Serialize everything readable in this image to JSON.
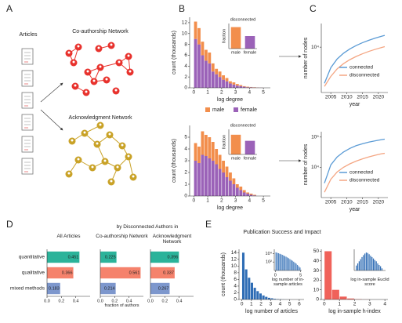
{
  "panel_labels": [
    "A",
    "B",
    "C",
    "D",
    "E"
  ],
  "diagram": {
    "articles": "Articles",
    "coauthorship": "Co-authorship Network",
    "acknowledgment": "Acknowledgment Network"
  },
  "panel_d_header": "by Disconnected Authors in",
  "panel_e_title": "Publication Success and Impact",
  "chart_data": [
    {
      "type": "histogram",
      "ylabel": "count (thousands)",
      "xlabel": "log degree",
      "bins": [
        0,
        0.25,
        0.5,
        0.75,
        1,
        1.25,
        1.5,
        1.75,
        2,
        2.25,
        2.5,
        2.75,
        3,
        3.25,
        3.5,
        3.75,
        4,
        4.25,
        4.5,
        4.75,
        5
      ],
      "series": [
        {
          "name": "male",
          "color": "#f28e4c",
          "values": [
            3.2,
            3,
            2.5,
            2,
            2,
            1.5,
            1,
            1,
            0.8,
            0.6,
            0.4,
            0.4,
            0.3,
            0.2,
            0.1,
            0.1,
            0.05,
            0.05,
            0.02,
            0.01
          ]
        },
        {
          "name": "female",
          "color": "#9b62b8",
          "values": [
            9,
            8,
            6,
            5,
            4.5,
            3,
            2.5,
            2,
            1.5,
            1.2,
            0.8,
            0.6,
            0.4,
            0.3,
            0.2,
            0.1,
            0.1,
            0.05,
            0.03,
            0.02
          ]
        }
      ],
      "xlim": [
        -0.3,
        5.5
      ],
      "xticks": [
        0,
        1,
        2,
        3,
        4,
        5
      ],
      "ylim": [
        0,
        13
      ],
      "yticks": [
        0,
        2,
        4,
        6,
        8,
        10,
        12
      ],
      "legend": "below"
    },
    {
      "type": "bar",
      "title": "disconnected",
      "ylabel": "fraction",
      "categories": [
        "male",
        "female"
      ],
      "values": [
        0.6,
        0.35
      ],
      "colors": [
        "#f28e4c",
        "#9b62b8"
      ],
      "ylim": [
        0,
        0.7
      ]
    },
    {
      "type": "histogram",
      "ylabel": "count (thousands)",
      "xlabel": "log degree",
      "bins": [
        0,
        0.25,
        0.5,
        0.75,
        1,
        1.25,
        1.5,
        1.75,
        2,
        2.25,
        2.5,
        2.75,
        3,
        3.25,
        3.5,
        3.75,
        4,
        4.25,
        4.5
      ],
      "series": [
        {
          "color": "#f28e4c",
          "values": [
            1.5,
            1.4,
            2,
            1.8,
            1.8,
            1.6,
            1.3,
            1.2,
            1,
            0.9,
            0.7,
            0.5,
            0.3,
            0.3,
            0.2,
            0.1,
            0.1,
            0.05
          ]
        },
        {
          "color": "#9b62b8",
          "values": [
            3,
            2.8,
            3.5,
            3.4,
            3.2,
            3,
            2.7,
            2.3,
            2,
            1.6,
            1.3,
            1,
            0.7,
            0.5,
            0.3,
            0.2,
            0.1,
            0.05
          ]
        }
      ],
      "xlim": [
        -0.3,
        5.5
      ],
      "xticks": [
        0,
        1,
        2,
        3,
        4,
        5
      ],
      "ylim": [
        0,
        6
      ],
      "yticks": [
        0,
        1,
        2,
        3,
        4,
        5
      ]
    },
    {
      "type": "bar",
      "title": "disconnected",
      "ylabel": "fraction",
      "categories": [
        "male",
        "female"
      ],
      "values": [
        0.55,
        0.38
      ],
      "colors": [
        "#f28e4c",
        "#9b62b8"
      ],
      "ylim": [
        0,
        0.7
      ]
    },
    {
      "type": "line",
      "xlabel": "year",
      "ylabel": "number of nodes",
      "x": [
        2003,
        2005,
        2007,
        2009,
        2011,
        2013,
        2015,
        2017,
        2019,
        2021,
        2022
      ],
      "series": [
        {
          "name": "connected",
          "color": "#5b9bd5",
          "values": [
            1200,
            3000,
            5000,
            7000,
            9000,
            11000,
            13000,
            15000,
            17000,
            19000,
            20000
          ]
        },
        {
          "name": "disconnected",
          "color": "#f4a582",
          "values": [
            1000,
            1800,
            2800,
            3800,
            4800,
            5800,
            6800,
            7800,
            8800,
            9800,
            10300
          ]
        }
      ],
      "xlim": [
        2002,
        2023
      ],
      "xticks": [
        2005,
        2010,
        2015,
        2020
      ],
      "ylog": true,
      "ylim": [
        700,
        40000
      ],
      "yticks": [
        {
          "value": 10000,
          "label": "10⁴"
        }
      ],
      "legend": "lower right"
    },
    {
      "type": "line",
      "xlabel": "year",
      "ylabel": "number of nodes",
      "x": [
        2003,
        2005,
        2007,
        2009,
        2011,
        2013,
        2015,
        2017,
        2019,
        2021,
        2022
      ],
      "series": [
        {
          "name": "connected",
          "color": "#5b9bd5",
          "values": [
            3000,
            12000,
            22000,
            32000,
            42000,
            52000,
            60000,
            68000,
            75000,
            82000,
            85000
          ]
        },
        {
          "name": "disconnected",
          "color": "#f4a582",
          "values": [
            1500,
            4000,
            7000,
            10000,
            13000,
            16000,
            19000,
            22000,
            25000,
            28000,
            29000
          ]
        }
      ],
      "xlim": [
        2002,
        2023
      ],
      "xticks": [
        2005,
        2010,
        2015,
        2020
      ],
      "ylog": true,
      "ylim": [
        1000,
        150000
      ],
      "yticks": [
        {
          "value": 10000,
          "label": "10⁴"
        },
        {
          "value": 100000,
          "label": "10⁵"
        }
      ],
      "legend": "lower right"
    },
    {
      "type": "hbar",
      "title": "All Articles",
      "categories": [
        "quantitative",
        "qualitative",
        "mixed methods"
      ],
      "values": [
        0.451,
        0.366,
        0.183
      ],
      "colors": [
        "#2bb39a",
        "#f5826c",
        "#7d97cd"
      ],
      "xlim": [
        0,
        0.6
      ],
      "xticks": [
        {
          "value": 0,
          "label": "0.0"
        },
        0.2,
        0.4
      ]
    },
    {
      "type": "hbar",
      "title": "Co-authorship Network",
      "xlabel": "fraction of authors",
      "values": [
        0.225,
        0.561,
        0.214
      ],
      "colors": [
        "#2bb39a",
        "#f5826c",
        "#7d97cd"
      ],
      "xlim": [
        0,
        0.6
      ],
      "xticks": [
        {
          "value": 0,
          "label": "0.0"
        },
        0.2,
        0.4
      ]
    },
    {
      "type": "hbar",
      "title": "Acknowledgment Network",
      "values": [
        0.396,
        0.337,
        0.267
      ],
      "colors": [
        "#2bb39a",
        "#f5826c",
        "#7d97cd"
      ],
      "xlim": [
        0,
        0.6
      ],
      "xticks": [
        {
          "value": 0,
          "label": "0.0"
        },
        0.2,
        0.4
      ]
    },
    {
      "type": "histogram",
      "ylabel": "count (thousands)",
      "xlabel": "log number of articles",
      "bins": [
        0,
        0.3,
        0.6,
        0.9,
        1.2,
        1.5,
        1.8,
        2.1,
        2.4,
        2.7,
        3,
        3.3,
        3.6,
        3.9,
        4.2,
        4.5,
        4.8,
        5.1,
        5.4
      ],
      "values": [
        14,
        9,
        6.5,
        5,
        3.5,
        2.5,
        1.8,
        1.2,
        0.8,
        0.5,
        0.35,
        0.2,
        0.12,
        0.07,
        0.04,
        0.02,
        0.01,
        0.005
      ],
      "color": "#2f6db5",
      "xlim": [
        -0.3,
        6.5
      ],
      "xticks": [
        0,
        1,
        2,
        3,
        4,
        5,
        6
      ],
      "ylim": [
        0,
        15
      ],
      "yticks": [
        0,
        2,
        4,
        6,
        8,
        10,
        12,
        14
      ]
    },
    {
      "type": "histogram",
      "xlabel": "log number of in-sample articles",
      "bins": [
        0,
        0.25,
        0.5,
        0.75,
        1,
        1.25,
        1.5,
        1.75,
        2,
        2.25,
        2.5,
        2.75,
        3,
        3.25,
        3.5,
        3.75,
        4,
        4.25,
        4.5,
        4.75,
        5
      ],
      "values": [
        20000,
        15000,
        12000,
        9000,
        7000,
        5000,
        3500,
        2500,
        1800,
        1200,
        800,
        500,
        300,
        200,
        120,
        70,
        40,
        20,
        10,
        5
      ],
      "color": "#2f6db5",
      "xlim": [
        -0.2,
        5.2
      ],
      "xticks": [
        0,
        5
      ],
      "ylog": true,
      "ylim": [
        1,
        100000
      ],
      "yticks": [
        {
          "value": 100,
          "label": "10²"
        },
        {
          "value": 10000,
          "label": "10⁴"
        }
      ]
    },
    {
      "type": "histogram",
      "xlabel": "log in-sample h-index",
      "bins": [
        0,
        0.5,
        1,
        1.5,
        2,
        2.5,
        3
      ],
      "values": [
        50,
        10,
        3,
        1,
        0.3,
        0.1
      ],
      "color": "#f0625a",
      "xlim": [
        -0.2,
        4.2
      ],
      "xticks": [
        0,
        1,
        2,
        3,
        4
      ],
      "ylim": [
        0,
        52
      ],
      "yticks": [
        0,
        10,
        20,
        30,
        40,
        50
      ]
    },
    {
      "type": "histogram",
      "xlabel": "log in-sample Euclid score",
      "bins": [
        -2,
        -1.8,
        -1.6,
        -1.4,
        -1.2,
        -1,
        -0.8,
        -0.6,
        -0.4,
        -0.2,
        0,
        0.2,
        0.4,
        0.6,
        0.8,
        1,
        1.2,
        1.4,
        1.6,
        1.8,
        2
      ],
      "values": [
        5,
        10,
        20,
        40,
        80,
        150,
        250,
        350,
        300,
        200,
        120,
        80,
        50,
        30,
        20,
        10,
        6,
        4,
        2,
        1
      ],
      "color": "#2f6db5",
      "xlim": [
        -2.2,
        2.2
      ],
      "ylog": true,
      "ylim": [
        1,
        1000
      ]
    }
  ]
}
